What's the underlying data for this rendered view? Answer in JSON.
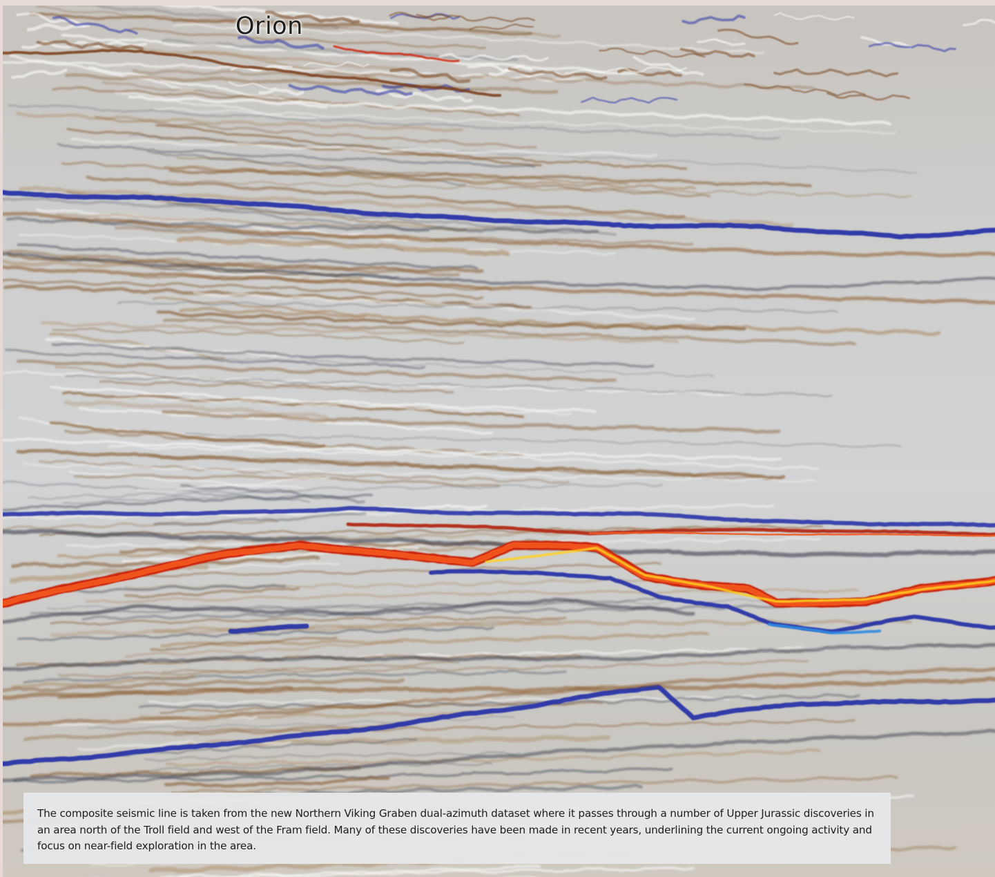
{
  "well_label": "Orion",
  "caption": "The composite seismic line is taken from the new Northern Viking Graben dual-azimuth dataset where it passes through a number of Upper Jurassic discoveries in an area north of the Troll field and west of the Fram field. Many of these discoveries have been made in recent years, underlining the current ongoing activity and focus on near-field exploration in the area.",
  "colors": {
    "frame": "#e6d9d6",
    "background": "#c9cacb",
    "trough": "#2a36a8",
    "peak_brown": "#8a5a2b",
    "peak_red": "#e8451e",
    "peak_yellow": "#ffd21c",
    "bright_blue": "#2f8be0"
  }
}
